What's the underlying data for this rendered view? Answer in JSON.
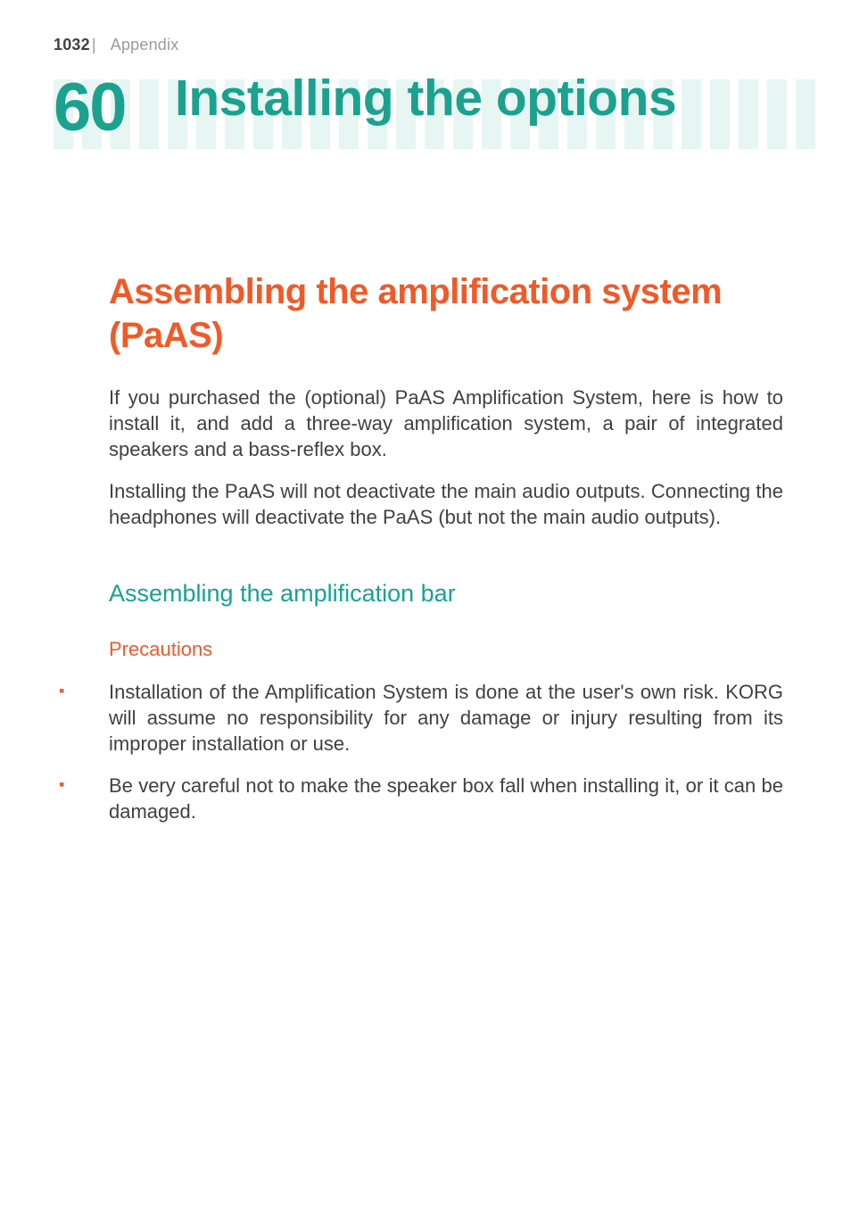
{
  "header": {
    "page_number": "1032",
    "separator": "|",
    "section": "Appendix"
  },
  "chapter": {
    "number": "60",
    "title": "Installing the options"
  },
  "h1": "Assembling the amplification system (PaAS)",
  "intro_p1": "If you purchased the (optional) PaAS Amplification System, here is how to install it, and add a three-way amplification system, a pair of integrated speakers and a bass-reflex box.",
  "intro_p2": "Installing the PaAS will not deactivate the main audio outputs. Connecting the headphones will deactivate the PaAS (but not the main audio outputs).",
  "h2": "Assembling the amplification bar",
  "h3": "Precautions",
  "bullets": [
    "Installation of the Amplification System is done at the user's own risk. KORG will assume no responsibility for any damage or injury resulting from its improper installation or use.",
    "Be very careful not to make the speaker box fall when installing it, or it can be damaged."
  ],
  "colors": {
    "accent_teal": "#1aa28f",
    "accent_teal_light": "#e7f6f3",
    "accent_orange": "#f05a28",
    "body_text": "#414042",
    "muted_text": "#9b9b9b",
    "background": "#ffffff"
  },
  "typography": {
    "running_head_fontsize": 18,
    "chapter_num_fontsize": 76,
    "chapter_title_fontsize": 57,
    "h1_fontsize": 40,
    "h2_fontsize": 27,
    "h3_fontsize": 22,
    "body_fontsize": 22
  },
  "stripes": {
    "count": 27,
    "width": 22,
    "gap": 10,
    "height": 78,
    "color": "#e7f6f3"
  }
}
